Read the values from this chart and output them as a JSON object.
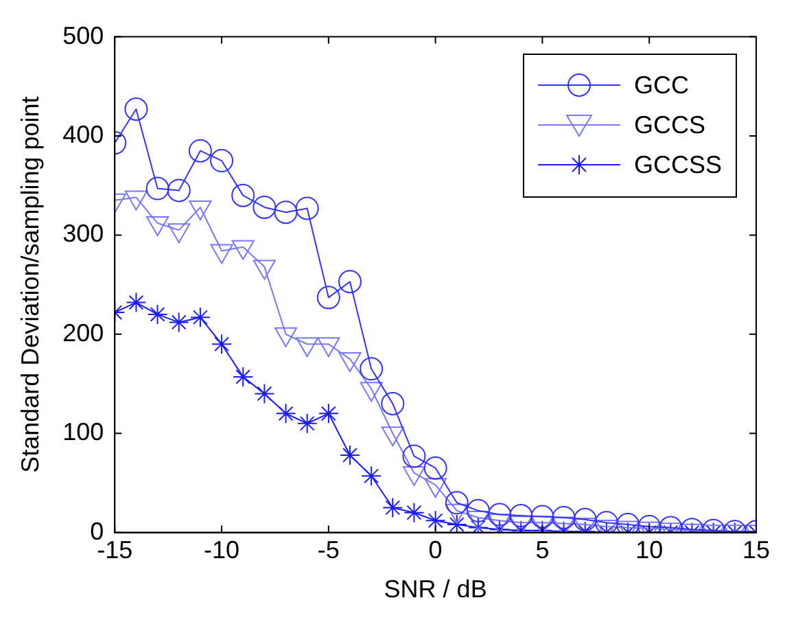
{
  "chart_data": {
    "type": "line",
    "xlabel": "SNR / dB",
    "ylabel": "Standard Deviation/sampling point",
    "x": [
      -15,
      -14,
      -13,
      -12,
      -11,
      -10,
      -9,
      -8,
      -7,
      -6,
      -5,
      -4,
      -3,
      -2,
      -1,
      0,
      1,
      2,
      3,
      4,
      5,
      6,
      7,
      8,
      9,
      10,
      11,
      12,
      13,
      14,
      15
    ],
    "xlim": [
      -15,
      15
    ],
    "xticks": [
      -15,
      -10,
      -5,
      0,
      5,
      10,
      15
    ],
    "ylim": [
      0,
      500
    ],
    "yticks": [
      0,
      100,
      200,
      300,
      400,
      500
    ],
    "grid": false,
    "legend": "top right",
    "series": [
      {
        "name": "GCC",
        "color": "#3333ff",
        "marker": "circle",
        "values": [
          393,
          427,
          347,
          345,
          385,
          375,
          340,
          328,
          323,
          327,
          237,
          253,
          165,
          130,
          77,
          65,
          30,
          22,
          18,
          17,
          16,
          15,
          13,
          10,
          8,
          6,
          5,
          3,
          2,
          1,
          1
        ]
      },
      {
        "name": "GCCS",
        "color": "#7777ff",
        "marker": "triangle",
        "values": [
          335,
          338,
          312,
          305,
          328,
          284,
          288,
          268,
          200,
          190,
          190,
          175,
          145,
          100,
          60,
          48,
          22,
          15,
          12,
          10,
          10,
          9,
          8,
          6,
          5,
          4,
          3,
          2,
          1,
          1,
          1
        ]
      },
      {
        "name": "GCCSS",
        "color": "#1a1aff",
        "marker": "cross",
        "values": [
          222,
          232,
          220,
          212,
          217,
          190,
          157,
          140,
          120,
          110,
          120,
          78,
          57,
          25,
          20,
          12,
          8,
          5,
          3,
          2,
          2,
          1,
          1,
          0,
          0,
          0,
          0,
          0,
          0,
          0,
          0
        ]
      }
    ]
  }
}
